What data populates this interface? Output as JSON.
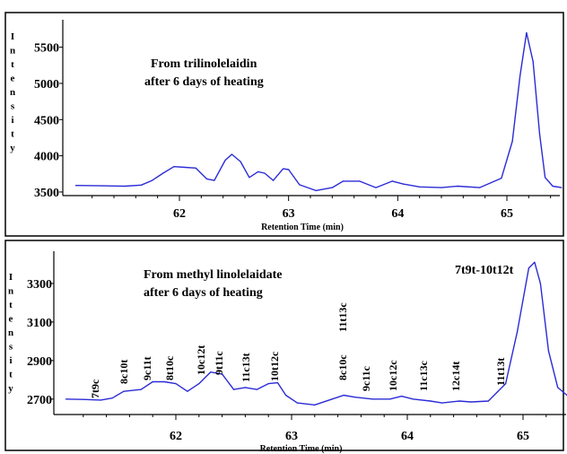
{
  "chart_data": [
    {
      "type": "line",
      "panel": "top",
      "title": "",
      "xlabel": "Retention Time (min)",
      "ylabel": "Intensity",
      "xlim": [
        61.05,
        65.5
      ],
      "ylim": [
        3450,
        5780
      ],
      "x_ticks": [
        62,
        63,
        64,
        65
      ],
      "y_ticks": [
        3500,
        4000,
        4500,
        5000,
        5500
      ],
      "grid": false,
      "annotations": [
        "From trilinolelaidin",
        "after 6 days of heating"
      ],
      "series": [
        {
          "color": "#2b2bd6",
          "points": [
            [
              61.05,
              3590
            ],
            [
              61.3,
              3585
            ],
            [
              61.5,
              3580
            ],
            [
              61.65,
              3595
            ],
            [
              61.75,
              3660
            ],
            [
              61.85,
              3760
            ],
            [
              61.95,
              3850
            ],
            [
              62.05,
              3840
            ],
            [
              62.15,
              3830
            ],
            [
              62.25,
              3680
            ],
            [
              62.32,
              3660
            ],
            [
              62.42,
              3940
            ],
            [
              62.48,
              4020
            ],
            [
              62.56,
              3920
            ],
            [
              62.64,
              3700
            ],
            [
              62.72,
              3780
            ],
            [
              62.78,
              3760
            ],
            [
              62.86,
              3660
            ],
            [
              62.95,
              3820
            ],
            [
              63.0,
              3810
            ],
            [
              63.1,
              3600
            ],
            [
              63.25,
              3520
            ],
            [
              63.4,
              3560
            ],
            [
              63.5,
              3650
            ],
            [
              63.65,
              3650
            ],
            [
              63.8,
              3560
            ],
            [
              63.95,
              3650
            ],
            [
              64.05,
              3610
            ],
            [
              64.2,
              3570
            ],
            [
              64.4,
              3560
            ],
            [
              64.55,
              3580
            ],
            [
              64.75,
              3560
            ],
            [
              64.95,
              3690
            ],
            [
              65.05,
              4200
            ],
            [
              65.12,
              5100
            ],
            [
              65.18,
              5700
            ],
            [
              65.24,
              5300
            ],
            [
              65.3,
              4300
            ],
            [
              65.35,
              3700
            ],
            [
              65.42,
              3580
            ],
            [
              65.5,
              3560
            ]
          ]
        }
      ]
    },
    {
      "type": "line",
      "panel": "bottom",
      "title": "",
      "xlabel": "Retention Time (min)",
      "ylabel": "Intensity",
      "xlim": [
        61.05,
        65.5
      ],
      "ylim": [
        2620,
        3430
      ],
      "x_ticks": [
        62,
        63,
        64,
        65
      ],
      "y_ticks": [
        2700,
        2900,
        3100,
        3300
      ],
      "grid": false,
      "annotations": [
        "From methyl linolelaidate",
        "after 6 days of heating",
        "7t9t-10t12t"
      ],
      "peak_labels": [
        "7t9c",
        "8c10t",
        "9c11t",
        "8t10c",
        "10c12t",
        "9t11c",
        "11c13t",
        "10t12c",
        "8c10c",
        "11t13c",
        "9c11c",
        "10c12c",
        "11c13c",
        "12c14t",
        "11t13t"
      ],
      "series": [
        {
          "color": "#2b2bd6",
          "points": [
            [
              61.05,
              2700
            ],
            [
              61.2,
              2698
            ],
            [
              61.35,
              2695
            ],
            [
              61.45,
              2705
            ],
            [
              61.55,
              2740
            ],
            [
              61.7,
              2750
            ],
            [
              61.8,
              2790
            ],
            [
              61.9,
              2790
            ],
            [
              62.0,
              2780
            ],
            [
              62.1,
              2740
            ],
            [
              62.2,
              2780
            ],
            [
              62.3,
              2840
            ],
            [
              62.4,
              2830
            ],
            [
              62.5,
              2750
            ],
            [
              62.6,
              2760
            ],
            [
              62.7,
              2750
            ],
            [
              62.8,
              2780
            ],
            [
              62.88,
              2785
            ],
            [
              62.95,
              2720
            ],
            [
              63.05,
              2680
            ],
            [
              63.2,
              2670
            ],
            [
              63.35,
              2700
            ],
            [
              63.45,
              2720
            ],
            [
              63.55,
              2710
            ],
            [
              63.7,
              2700
            ],
            [
              63.85,
              2700
            ],
            [
              63.95,
              2715
            ],
            [
              64.05,
              2700
            ],
            [
              64.2,
              2690
            ],
            [
              64.3,
              2680
            ],
            [
              64.45,
              2690
            ],
            [
              64.55,
              2685
            ],
            [
              64.7,
              2690
            ],
            [
              64.85,
              2780
            ],
            [
              64.95,
              3050
            ],
            [
              65.05,
              3380
            ],
            [
              65.1,
              3410
            ],
            [
              65.15,
              3300
            ],
            [
              65.22,
              2950
            ],
            [
              65.3,
              2760
            ],
            [
              65.4,
              2710
            ],
            [
              65.5,
              2700
            ]
          ]
        }
      ]
    }
  ]
}
